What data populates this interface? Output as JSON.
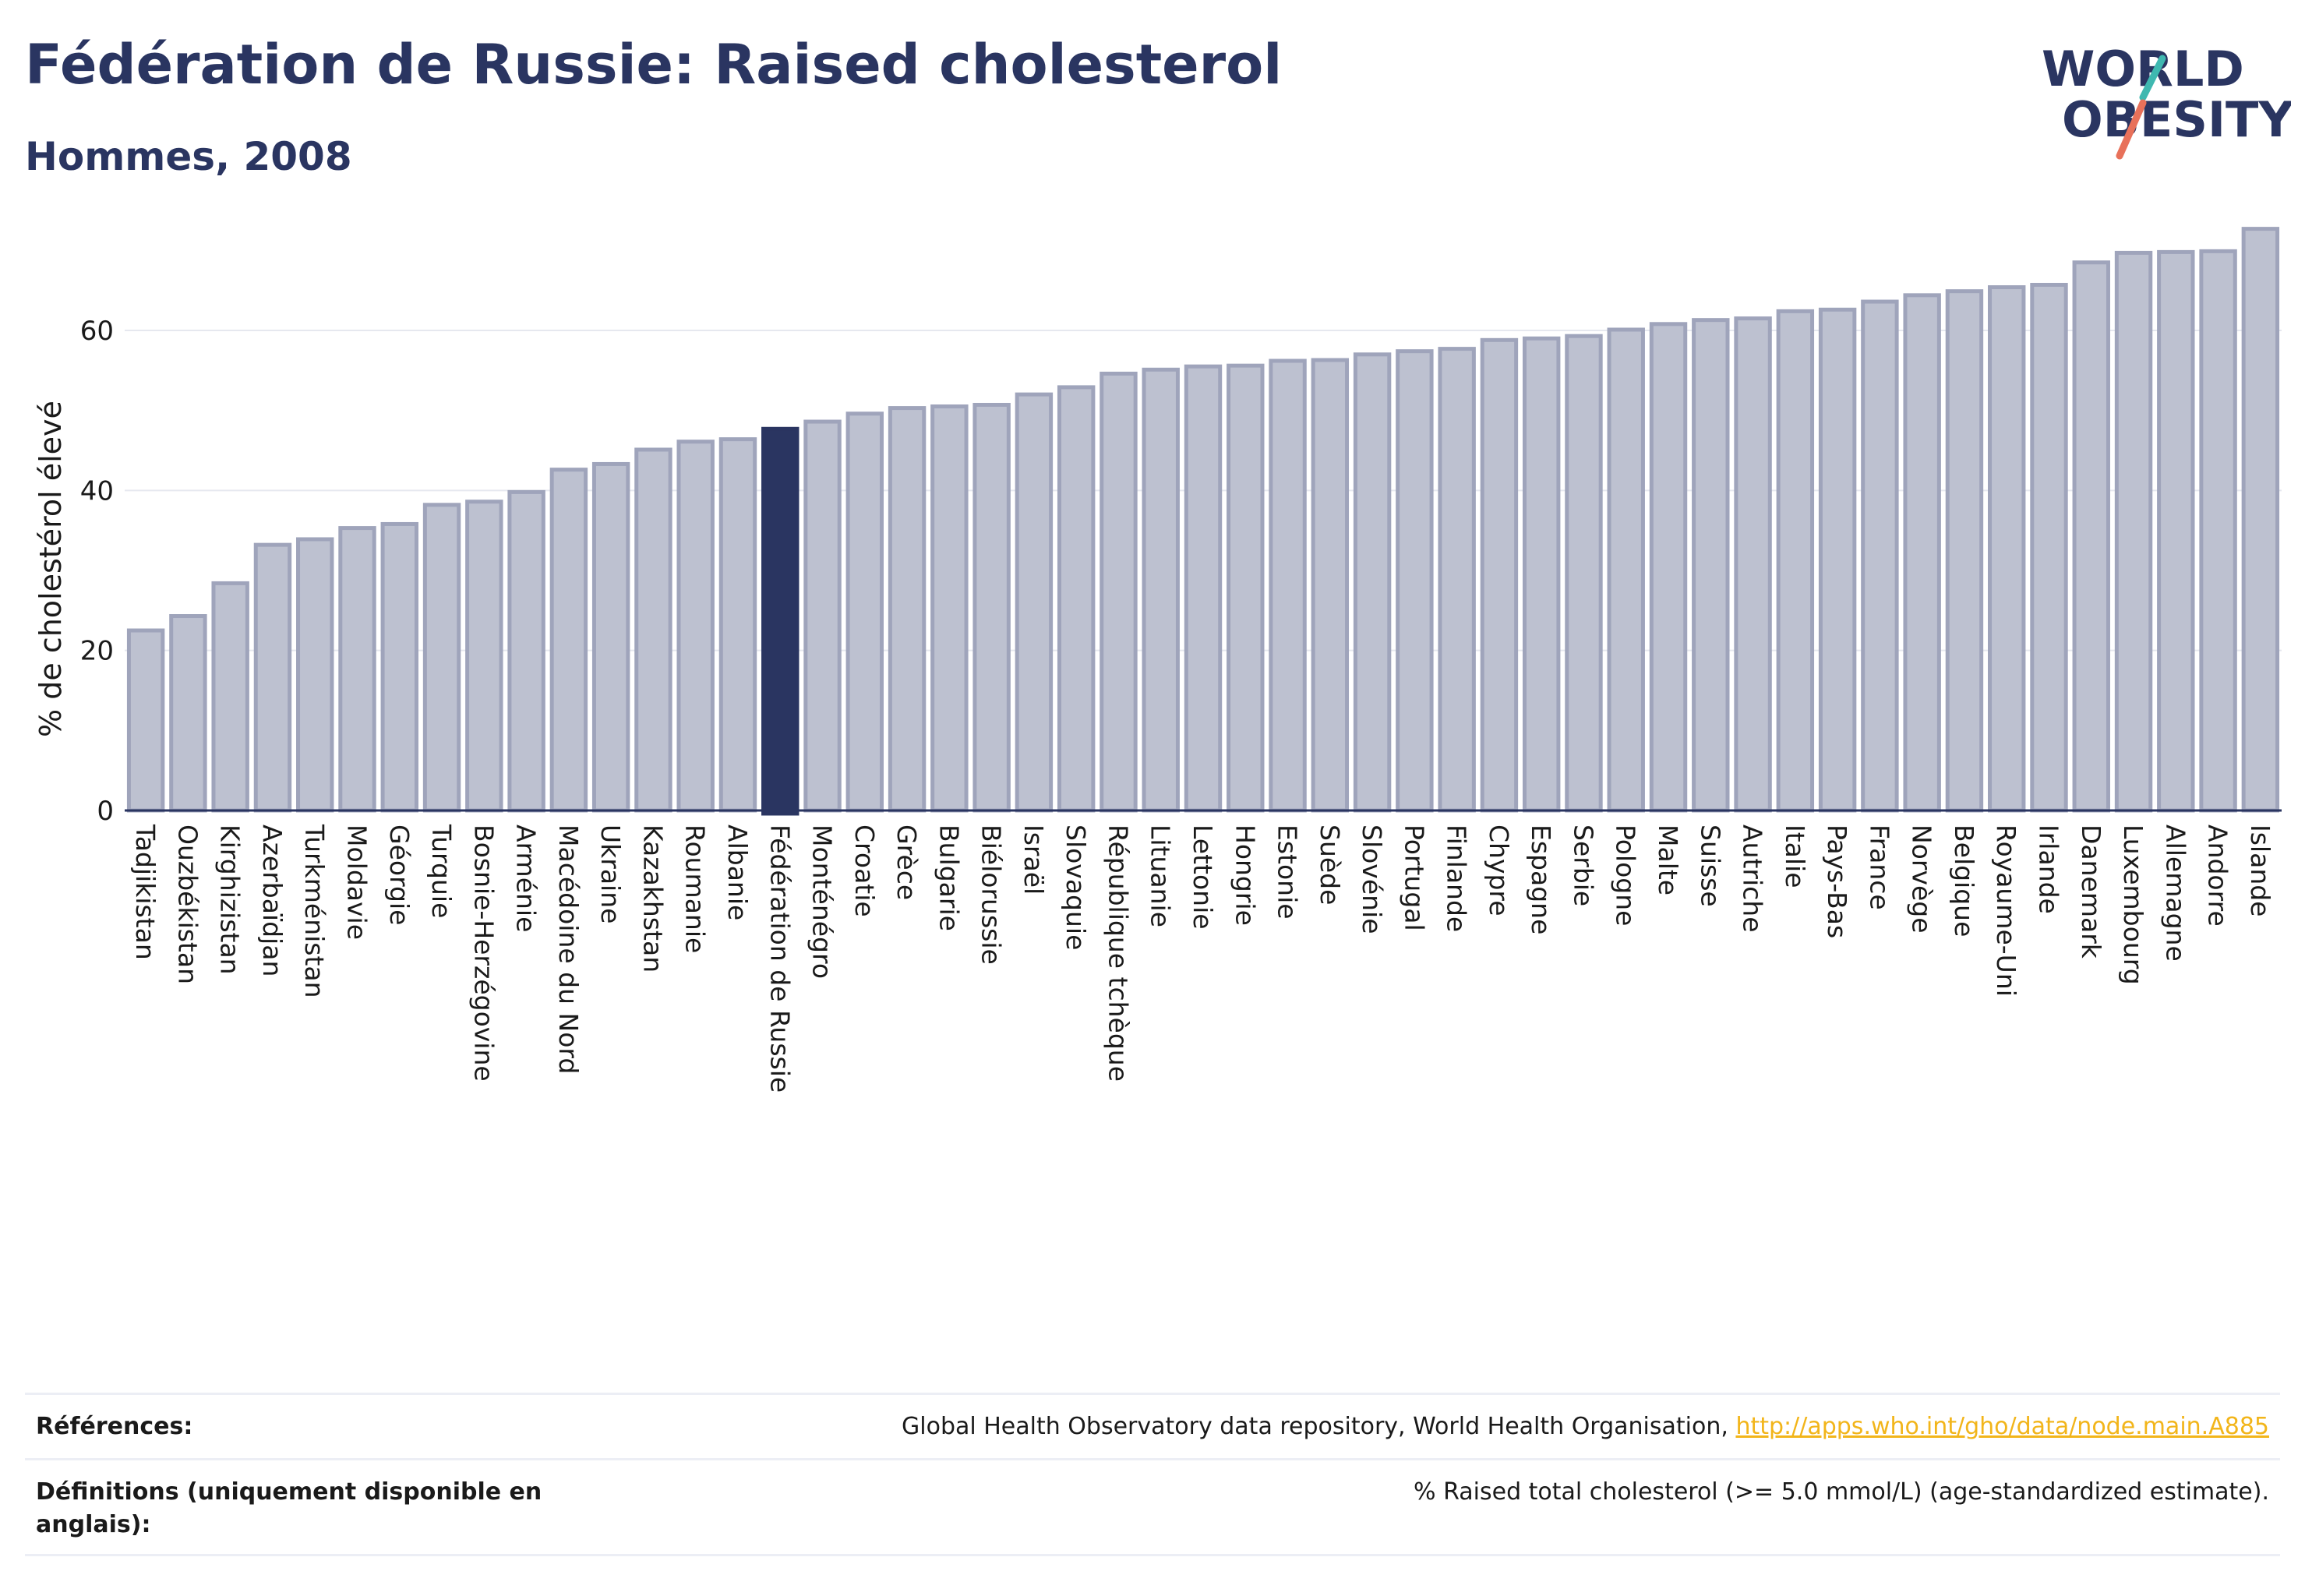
{
  "header": {
    "title": "Fédération de Russie: Raised cholesterol",
    "subtitle": "Hommes, 2008"
  },
  "logo": {
    "line1": "WORLD",
    "line2": "OBESITY",
    "accent_teal": "#3fb8b0",
    "accent_coral": "#e8715a",
    "text_color": "#2a3561"
  },
  "chart_data": {
    "type": "bar",
    "ylabel": "% de cholestérol élevé",
    "ylim": [
      0,
      75
    ],
    "yticks": [
      0,
      20,
      40,
      60
    ],
    "grid": true,
    "highlight": "Fédération de Russie",
    "bar_color": "#bdc1d0",
    "bar_border_color": "#9fa4bb",
    "highlight_color": "#2a3561",
    "categories": [
      "Tadjikistan",
      "Ouzbékistan",
      "Kirghizistan",
      "Azerbaïdjan",
      "Turkménistan",
      "Moldavie",
      "Géorgie",
      "Turquie",
      "Bosnie-Herzégovine",
      "Arménie",
      "Macédoine du Nord",
      "Ukraine",
      "Kazakhstan",
      "Roumanie",
      "Albanie",
      "Fédération de Russie",
      "Monténégro",
      "Croatie",
      "Grèce",
      "Bulgarie",
      "Biélorussie",
      "Israël",
      "Slovaquie",
      "République tchèque",
      "Lituanie",
      "Lettonie",
      "Hongrie",
      "Estonie",
      "Suède",
      "Slovénie",
      "Portugal",
      "Finlande",
      "Chypre",
      "Espagne",
      "Serbie",
      "Pologne",
      "Malte",
      "Suisse",
      "Autriche",
      "Italie",
      "Pays-Bas",
      "France",
      "Norvège",
      "Belgique",
      "Royaume-Uni",
      "Irlande",
      "Danemark",
      "Luxembourg",
      "Allemagne",
      "Andorre",
      "Islande"
    ],
    "values": [
      22.5,
      24.3,
      28.4,
      33.2,
      33.9,
      35.3,
      35.8,
      38.2,
      38.6,
      39.8,
      42.6,
      43.3,
      45.1,
      46.1,
      46.4,
      47.7,
      48.6,
      49.6,
      50.3,
      50.5,
      50.7,
      52.0,
      52.9,
      54.6,
      55.1,
      55.5,
      55.6,
      56.2,
      56.3,
      57.0,
      57.4,
      57.7,
      58.8,
      59.0,
      59.3,
      60.1,
      60.8,
      61.3,
      61.5,
      62.4,
      62.6,
      63.6,
      64.4,
      64.9,
      65.4,
      65.7,
      68.5,
      69.7,
      69.8,
      69.9,
      72.7
    ]
  },
  "footer": {
    "references_label": "Références:",
    "references_text": "Global Health Observatory data repository, World Health Organisation, ",
    "references_link": "http://apps.who.int/gho/data/node.main.A885",
    "definitions_label": "Définitions (uniquement disponible en anglais):",
    "definitions_text": "% Raised total cholesterol (>= 5.0 mmol/L) (age-standardized estimate)."
  }
}
